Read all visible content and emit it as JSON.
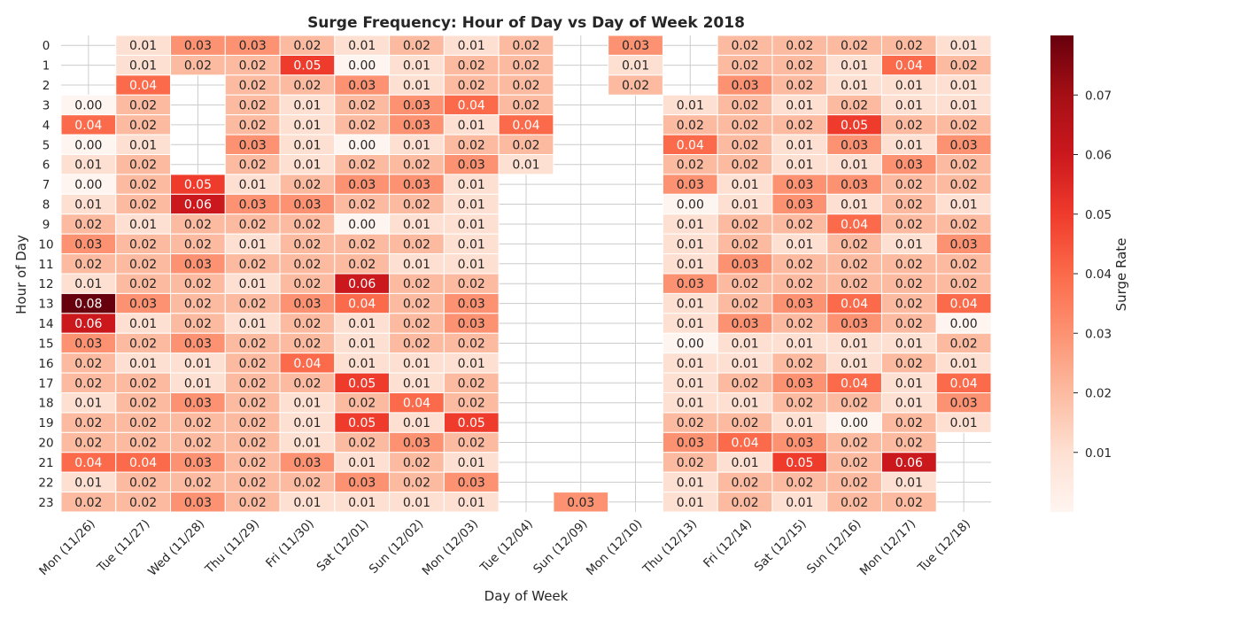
{
  "chart_data": {
    "type": "heatmap",
    "title": "Surge Frequency: Hour of Day vs Day of Week 2018",
    "xlabel": "Day of Week",
    "ylabel": "Hour of Day",
    "colorbar_label": "Surge Rate",
    "colormap": "Reds",
    "vmin": 0.0,
    "vmax": 0.08,
    "colorbar_ticks": [
      "0.01",
      "0.02",
      "0.03",
      "0.04",
      "0.05",
      "0.06",
      "0.07"
    ],
    "grid": true,
    "x_categories": [
      "Mon (11/26)",
      "Tue (11/27)",
      "Wed (11/28)",
      "Thu (11/29)",
      "Fri (11/30)",
      "Sat (12/01)",
      "Sun (12/02)",
      "Mon (12/03)",
      "Tue (12/04)",
      "Sun (12/09)",
      "Mon (12/10)",
      "Thu (12/13)",
      "Fri (12/14)",
      "Sat (12/15)",
      "Sun (12/16)",
      "Mon (12/17)",
      "Tue (12/18)"
    ],
    "y_categories": [
      "0",
      "1",
      "2",
      "3",
      "4",
      "5",
      "6",
      "7",
      "8",
      "9",
      "10",
      "11",
      "12",
      "13",
      "14",
      "15",
      "16",
      "17",
      "18",
      "19",
      "20",
      "21",
      "22",
      "23"
    ],
    "values": [
      [
        null,
        0.01,
        0.03,
        0.03,
        0.02,
        0.01,
        0.02,
        0.01,
        0.02,
        null,
        0.03,
        null,
        0.02,
        0.02,
        0.02,
        0.02,
        0.01
      ],
      [
        null,
        0.01,
        0.02,
        0.02,
        0.05,
        0.0,
        0.01,
        0.02,
        0.02,
        null,
        0.01,
        null,
        0.02,
        0.02,
        0.01,
        0.04,
        0.02
      ],
      [
        null,
        0.04,
        null,
        0.02,
        0.02,
        0.03,
        0.01,
        0.02,
        0.02,
        null,
        0.02,
        null,
        0.03,
        0.02,
        0.01,
        0.01,
        0.01
      ],
      [
        0.0,
        0.02,
        null,
        0.02,
        0.01,
        0.02,
        0.03,
        0.04,
        0.02,
        null,
        null,
        0.01,
        0.02,
        0.01,
        0.02,
        0.01,
        0.01
      ],
      [
        0.04,
        0.02,
        null,
        0.02,
        0.01,
        0.02,
        0.03,
        0.01,
        0.04,
        null,
        null,
        0.02,
        0.02,
        0.02,
        0.05,
        0.02,
        0.02
      ],
      [
        0.0,
        0.01,
        null,
        0.03,
        0.01,
        0.0,
        0.01,
        0.02,
        0.02,
        null,
        null,
        0.04,
        0.02,
        0.01,
        0.03,
        0.01,
        0.03
      ],
      [
        0.01,
        0.02,
        null,
        0.02,
        0.01,
        0.02,
        0.02,
        0.03,
        0.01,
        null,
        null,
        0.02,
        0.02,
        0.01,
        0.01,
        0.03,
        0.02
      ],
      [
        0.0,
        0.02,
        0.05,
        0.01,
        0.02,
        0.03,
        0.03,
        0.01,
        null,
        null,
        null,
        0.03,
        0.01,
        0.03,
        0.03,
        0.02,
        0.02
      ],
      [
        0.01,
        0.02,
        0.06,
        0.03,
        0.03,
        0.02,
        0.02,
        0.01,
        null,
        null,
        null,
        0.0,
        0.01,
        0.03,
        0.01,
        0.02,
        0.01
      ],
      [
        0.02,
        0.01,
        0.02,
        0.02,
        0.02,
        0.0,
        0.01,
        0.01,
        null,
        null,
        null,
        0.01,
        0.02,
        0.02,
        0.04,
        0.02,
        0.02
      ],
      [
        0.03,
        0.02,
        0.02,
        0.01,
        0.02,
        0.02,
        0.02,
        0.01,
        null,
        null,
        null,
        0.01,
        0.02,
        0.01,
        0.02,
        0.01,
        0.03
      ],
      [
        0.02,
        0.02,
        0.03,
        0.02,
        0.02,
        0.02,
        0.01,
        0.01,
        null,
        null,
        null,
        0.01,
        0.03,
        0.02,
        0.02,
        0.02,
        0.02
      ],
      [
        0.01,
        0.02,
        0.02,
        0.01,
        0.02,
        0.06,
        0.02,
        0.02,
        null,
        null,
        null,
        0.03,
        0.02,
        0.02,
        0.02,
        0.02,
        0.02
      ],
      [
        0.08,
        0.03,
        0.02,
        0.02,
        0.03,
        0.04,
        0.02,
        0.03,
        null,
        null,
        null,
        0.01,
        0.02,
        0.03,
        0.04,
        0.02,
        0.04
      ],
      [
        0.06,
        0.01,
        0.02,
        0.01,
        0.02,
        0.01,
        0.02,
        0.03,
        null,
        null,
        null,
        0.01,
        0.03,
        0.02,
        0.03,
        0.02,
        0.0
      ],
      [
        0.03,
        0.02,
        0.03,
        0.02,
        0.02,
        0.01,
        0.02,
        0.02,
        null,
        null,
        null,
        0.0,
        0.01,
        0.01,
        0.01,
        0.01,
        0.02
      ],
      [
        0.02,
        0.01,
        0.01,
        0.02,
        0.04,
        0.01,
        0.01,
        0.01,
        null,
        null,
        null,
        0.01,
        0.01,
        0.02,
        0.01,
        0.02,
        0.01
      ],
      [
        0.02,
        0.02,
        0.01,
        0.02,
        0.02,
        0.05,
        0.01,
        0.02,
        null,
        null,
        null,
        0.01,
        0.02,
        0.03,
        0.04,
        0.01,
        0.04
      ],
      [
        0.01,
        0.02,
        0.03,
        0.02,
        0.01,
        0.02,
        0.04,
        0.02,
        null,
        null,
        null,
        0.01,
        0.01,
        0.02,
        0.02,
        0.01,
        0.03
      ],
      [
        0.02,
        0.02,
        0.02,
        0.02,
        0.01,
        0.05,
        0.01,
        0.05,
        null,
        null,
        null,
        0.02,
        0.02,
        0.01,
        0.0,
        0.02,
        0.01
      ],
      [
        0.02,
        0.02,
        0.02,
        0.02,
        0.01,
        0.02,
        0.03,
        0.02,
        null,
        null,
        null,
        0.03,
        0.04,
        0.03,
        0.02,
        0.02,
        null
      ],
      [
        0.04,
        0.04,
        0.03,
        0.02,
        0.03,
        0.01,
        0.02,
        0.01,
        null,
        null,
        null,
        0.02,
        0.01,
        0.05,
        0.02,
        0.06,
        null
      ],
      [
        0.01,
        0.02,
        0.02,
        0.02,
        0.02,
        0.03,
        0.02,
        0.03,
        null,
        null,
        null,
        0.01,
        0.02,
        0.02,
        0.02,
        0.01,
        null
      ],
      [
        0.02,
        0.02,
        0.03,
        0.02,
        0.01,
        0.01,
        0.01,
        0.01,
        null,
        0.03,
        null,
        0.01,
        0.02,
        0.01,
        0.02,
        0.02,
        null
      ]
    ]
  }
}
